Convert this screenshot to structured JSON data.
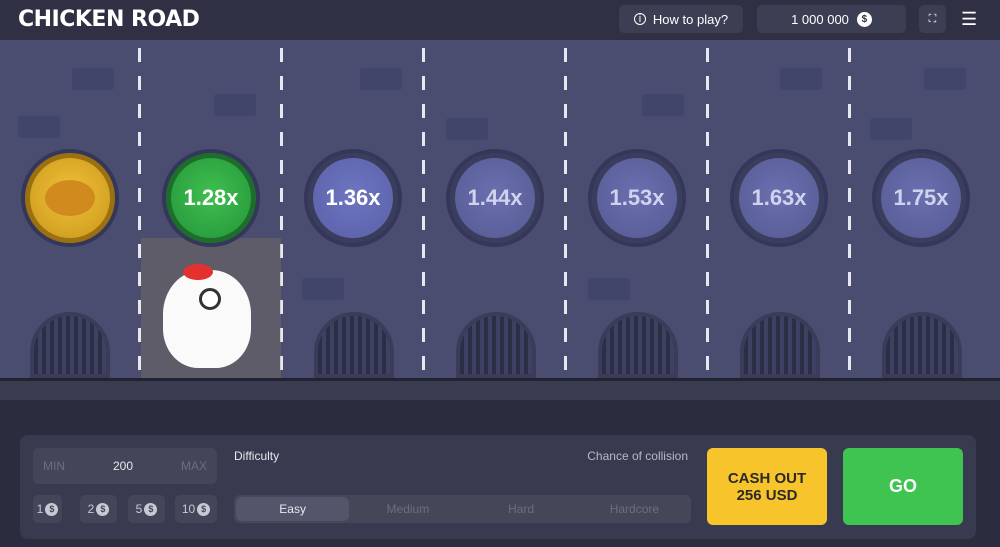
{
  "header": {
    "logo": "CHICKEN ROAD",
    "how_to_play": "How to play?",
    "balance": "1 000 000",
    "currency_icon": "dollar-icon"
  },
  "lanes": [
    {
      "type": "start",
      "icon": "roasted-chicken-icon"
    },
    {
      "multiplier": "1.28x",
      "state": "passed"
    },
    {
      "multiplier": "1.36x",
      "state": "next"
    },
    {
      "multiplier": "1.44x",
      "state": "upcoming"
    },
    {
      "multiplier": "1.53x",
      "state": "upcoming"
    },
    {
      "multiplier": "1.63x",
      "state": "upcoming"
    },
    {
      "multiplier": "1.75x",
      "state": "upcoming"
    }
  ],
  "bet": {
    "min": "MIN",
    "value": "200",
    "max": "MAX",
    "quick": [
      "1",
      "2",
      "5",
      "10"
    ]
  },
  "difficulty": {
    "label": "Difficulty",
    "chance_label": "Chance of collision",
    "options": [
      "Easy",
      "Medium",
      "Hard",
      "Hardcore"
    ],
    "selected": "Easy"
  },
  "cashout": {
    "line1": "CASH OUT",
    "line2": "256 USD"
  },
  "go": "GO",
  "colors": {
    "cashout": "#f7c52b",
    "go": "#3fc452",
    "passed": "#2fae45",
    "start": "#e0ae2a"
  }
}
